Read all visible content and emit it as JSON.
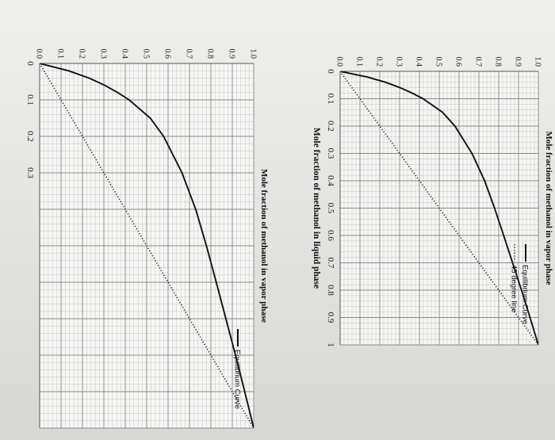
{
  "chart_data": [
    {
      "type": "line",
      "ylabel": "Mole fraction of methanol in vapor phase",
      "xlabel": "Mole fraction of methanol in liquid phase",
      "xlim": [
        0,
        1
      ],
      "ylim": [
        0,
        1
      ],
      "x_ticks": [
        "0",
        "0.1",
        "0.2",
        "0.3",
        "0.4",
        "0.5",
        "0.6",
        "0.7",
        "0.8",
        "0.9",
        "1"
      ],
      "y_ticks": [
        "0.0",
        "0.1",
        "0.2",
        "0.3",
        "0.4",
        "0.5",
        "0.6",
        "0.7",
        "0.8",
        "0.9",
        "1.0"
      ],
      "grid": true,
      "legend_position": "top-right",
      "series": [
        {
          "name": "Equilibrium Curve",
          "style": "solid",
          "color": "#111111",
          "x": [
            0,
            0.02,
            0.04,
            0.06,
            0.08,
            0.1,
            0.15,
            0.2,
            0.3,
            0.4,
            0.5,
            0.6,
            0.7,
            0.8,
            0.9,
            0.95,
            1.0
          ],
          "y": [
            0,
            0.134,
            0.23,
            0.304,
            0.365,
            0.418,
            0.517,
            0.579,
            0.665,
            0.729,
            0.779,
            0.825,
            0.87,
            0.915,
            0.958,
            0.979,
            1.0
          ]
        },
        {
          "name": "45 degree line",
          "style": "dotted",
          "color": "#222222",
          "x": [
            0,
            1
          ],
          "y": [
            0,
            1
          ]
        }
      ]
    },
    {
      "type": "line",
      "ylabel": "Mole fraction of methanol in vapor phase",
      "xlim": [
        0,
        1
      ],
      "ylim": [
        0,
        1
      ],
      "x_ticks": [
        "0",
        "0.1",
        "0.2",
        "0.3"
      ],
      "y_ticks": [
        "0.0",
        "0.1",
        "0.2",
        "0.3",
        "0.4",
        "0.5",
        "0.6",
        "0.7",
        "0.8",
        "0.9",
        "1.0"
      ],
      "grid": true,
      "legend_position": "top-right",
      "series": [
        {
          "name": "Equilibrium Curve",
          "style": "solid",
          "color": "#111111",
          "x": [
            0,
            0.02,
            0.04,
            0.06,
            0.08,
            0.1,
            0.15,
            0.2,
            0.3,
            0.4,
            0.5,
            0.6,
            0.7,
            0.8,
            0.9,
            0.95,
            1.0
          ],
          "y": [
            0,
            0.134,
            0.23,
            0.304,
            0.365,
            0.418,
            0.517,
            0.579,
            0.665,
            0.729,
            0.779,
            0.825,
            0.87,
            0.915,
            0.958,
            0.979,
            1.0
          ]
        },
        {
          "name": "",
          "style": "dotted",
          "color": "#222222",
          "x": [
            0,
            1
          ],
          "y": [
            0,
            1
          ]
        }
      ]
    }
  ]
}
